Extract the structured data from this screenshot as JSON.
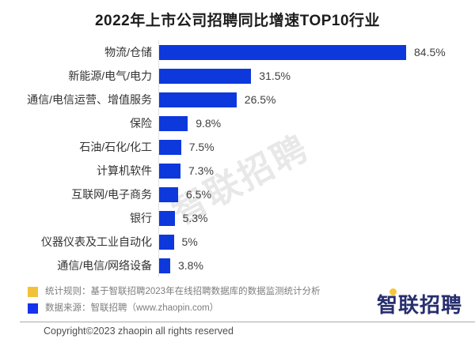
{
  "title": "2022年上市公司招聘同比增速TOP10行业",
  "chart_data": {
    "type": "bar",
    "orientation": "horizontal",
    "title": "2022年上市公司招聘同比增速TOP10行业",
    "categories": [
      "物流/仓储",
      "新能源/电气/电力",
      "通信/电信运营、增值服务",
      "保险",
      "石油/石化/化工",
      "计算机软件",
      "互联网/电子商务",
      "银行",
      "仪器仪表及工业自动化",
      "通信/电信/网络设备"
    ],
    "values": [
      84.5,
      31.5,
      26.5,
      9.8,
      7.5,
      7.3,
      6.5,
      5.3,
      5,
      3.8
    ],
    "value_labels": [
      "84.5%",
      "31.5%",
      "26.5%",
      "9.8%",
      "7.5%",
      "7.3%",
      "6.5%",
      "5.3%",
      "5%",
      "3.8%"
    ],
    "xlabel": "",
    "ylabel": "",
    "xlim": [
      0,
      90
    ],
    "grid": false,
    "axis_visible": false,
    "legend_position": "none",
    "bar_color": "#0d38dc"
  },
  "watermark": "智联招聘",
  "footnotes": [
    {
      "swatch_color": "#f2c139",
      "text": "统计规则：基于智联招聘2023年在线招聘数据库的数据监测统计分析"
    },
    {
      "swatch_color": "#1433eb",
      "text": "数据来源：智联招聘（www.zhaopin.com）"
    }
  ],
  "logo": {
    "text": "智联招聘",
    "color": "#272f6e",
    "dot_color": "#f5c63c"
  },
  "copyright": "Copyright©2023 zhaopin all rights reserved"
}
